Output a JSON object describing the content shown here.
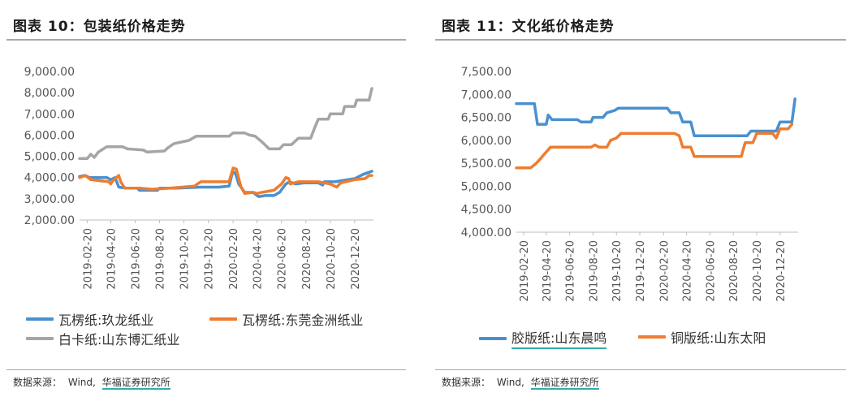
{
  "left": {
    "title": "图表 10：包装纸价格走势",
    "source": {
      "prefix": "数据来源：",
      "wind": "Wind,",
      "org": "华福证券研究所"
    },
    "chart_data": {
      "type": "line",
      "ylim": [
        2000,
        9000
      ],
      "yticks": [
        2000,
        3000,
        4000,
        5000,
        6000,
        7000,
        8000,
        9000
      ],
      "ytick_labels": [
        "2,000.00",
        "3,000.00",
        "4,000.00",
        "5,000.00",
        "6,000.00",
        "7,000.00",
        "8,000.00",
        "9,000.00"
      ],
      "xlim": [
        "2019-02-01",
        "2021-02-05"
      ],
      "xtick_labels": [
        "2019-02-20",
        "2019-04-20",
        "2019-06-20",
        "2019-08-20",
        "2019-10-20",
        "2019-12-20",
        "2020-02-20",
        "2020-04-20",
        "2020-06-20",
        "2020-08-20",
        "2020-10-20",
        "2020-12-20"
      ],
      "grid": false,
      "legend_position": "bottom",
      "series": [
        {
          "name": "瓦楞纸:玖龙纸业",
          "color": "#4a90d0",
          "points": [
            [
              "2019-02-01",
              4050
            ],
            [
              "2019-02-15",
              4100
            ],
            [
              "2019-02-25",
              4000
            ],
            [
              "2019-04-10",
              4000
            ],
            [
              "2019-04-20",
              3900
            ],
            [
              "2019-05-01",
              4000
            ],
            [
              "2019-05-10",
              3550
            ],
            [
              "2019-06-01",
              3500
            ],
            [
              "2019-06-25",
              3500
            ],
            [
              "2019-07-01",
              3400
            ],
            [
              "2019-08-15",
              3400
            ],
            [
              "2019-08-20",
              3500
            ],
            [
              "2019-10-01",
              3500
            ],
            [
              "2019-12-01",
              3550
            ],
            [
              "2020-01-15",
              3550
            ],
            [
              "2020-02-10",
              3600
            ],
            [
              "2020-02-18",
              4200
            ],
            [
              "2020-02-25",
              4250
            ],
            [
              "2020-03-05",
              3700
            ],
            [
              "2020-03-20",
              3300
            ],
            [
              "2020-04-10",
              3300
            ],
            [
              "2020-04-20",
              3150
            ],
            [
              "2020-04-25",
              3100
            ],
            [
              "2020-05-10",
              3150
            ],
            [
              "2020-06-01",
              3150
            ],
            [
              "2020-06-15",
              3300
            ],
            [
              "2020-07-01",
              3700
            ],
            [
              "2020-07-10",
              3800
            ],
            [
              "2020-07-25",
              3700
            ],
            [
              "2020-08-15",
              3750
            ],
            [
              "2020-09-20",
              3750
            ],
            [
              "2020-10-01",
              3650
            ],
            [
              "2020-10-05",
              3800
            ],
            [
              "2020-11-01",
              3800
            ],
            [
              "2020-12-20",
              3950
            ],
            [
              "2021-01-10",
              4150
            ],
            [
              "2021-01-25",
              4250
            ],
            [
              "2021-02-01",
              4300
            ]
          ]
        },
        {
          "name": "瓦楞纸:东莞金洲纸业",
          "color": "#ed7d31",
          "points": [
            [
              "2019-02-01",
              4000
            ],
            [
              "2019-02-15",
              4100
            ],
            [
              "2019-03-01",
              3900
            ],
            [
              "2019-04-15",
              3800
            ],
            [
              "2019-04-20",
              3700
            ],
            [
              "2019-04-25",
              3850
            ],
            [
              "2019-05-10",
              4100
            ],
            [
              "2019-05-15",
              3800
            ],
            [
              "2019-05-25",
              3500
            ],
            [
              "2019-07-01",
              3500
            ],
            [
              "2019-08-01",
              3450
            ],
            [
              "2019-09-15",
              3500
            ],
            [
              "2019-10-15",
              3550
            ],
            [
              "2019-11-15",
              3600
            ],
            [
              "2019-12-01",
              3800
            ],
            [
              "2020-01-25",
              3800
            ],
            [
              "2020-02-10",
              3800
            ],
            [
              "2020-02-20",
              4450
            ],
            [
              "2020-02-28",
              4400
            ],
            [
              "2020-03-10",
              3600
            ],
            [
              "2020-03-20",
              3250
            ],
            [
              "2020-04-10",
              3300
            ],
            [
              "2020-04-20",
              3250
            ],
            [
              "2020-05-01",
              3300
            ],
            [
              "2020-06-01",
              3400
            ],
            [
              "2020-06-20",
              3700
            ],
            [
              "2020-07-01",
              4000
            ],
            [
              "2020-07-08",
              3950
            ],
            [
              "2020-07-12",
              3700
            ],
            [
              "2020-08-01",
              3800
            ],
            [
              "2020-09-20",
              3800
            ],
            [
              "2020-10-20",
              3700
            ],
            [
              "2020-11-05",
              3550
            ],
            [
              "2020-11-15",
              3750
            ],
            [
              "2020-12-20",
              3900
            ],
            [
              "2021-01-15",
              3950
            ],
            [
              "2021-01-25",
              4100
            ],
            [
              "2021-02-01",
              4100
            ]
          ]
        },
        {
          "name": "白卡纸:山东博汇纸业",
          "color": "#a5a5a5",
          "points": [
            [
              "2019-02-01",
              4900
            ],
            [
              "2019-02-20",
              4900
            ],
            [
              "2019-03-01",
              5100
            ],
            [
              "2019-03-10",
              4950
            ],
            [
              "2019-03-20",
              5200
            ],
            [
              "2019-04-10",
              5450
            ],
            [
              "2019-05-20",
              5450
            ],
            [
              "2019-06-01",
              5350
            ],
            [
              "2019-07-10",
              5300
            ],
            [
              "2019-07-20",
              5200
            ],
            [
              "2019-09-01",
              5250
            ],
            [
              "2019-09-10",
              5400
            ],
            [
              "2019-09-25",
              5600
            ],
            [
              "2019-11-01",
              5750
            ],
            [
              "2019-11-20",
              5950
            ],
            [
              "2020-01-01",
              5950
            ],
            [
              "2020-02-10",
              5950
            ],
            [
              "2020-02-20",
              6100
            ],
            [
              "2020-03-20",
              6100
            ],
            [
              "2020-04-01",
              6000
            ],
            [
              "2020-04-15",
              5950
            ],
            [
              "2020-05-01",
              5700
            ],
            [
              "2020-05-20",
              5350
            ],
            [
              "2020-06-15",
              5350
            ],
            [
              "2020-06-25",
              5550
            ],
            [
              "2020-07-15",
              5550
            ],
            [
              "2020-08-01",
              5850
            ],
            [
              "2020-09-01",
              5850
            ],
            [
              "2020-09-10",
              6300
            ],
            [
              "2020-09-20",
              6750
            ],
            [
              "2020-10-15",
              6750
            ],
            [
              "2020-10-20",
              7000
            ],
            [
              "2020-11-20",
              7000
            ],
            [
              "2020-11-25",
              7350
            ],
            [
              "2020-12-20",
              7350
            ],
            [
              "2020-12-25",
              7650
            ],
            [
              "2021-01-25",
              7650
            ],
            [
              "2021-02-01",
              8200
            ]
          ]
        }
      ]
    }
  },
  "right": {
    "title": "图表 11：文化纸价格走势",
    "source": {
      "prefix": "数据来源：",
      "wind": "Wind,",
      "org": "华福证券研究所"
    },
    "chart_data": {
      "type": "line",
      "ylim": [
        4000,
        7500
      ],
      "yticks": [
        4000,
        4500,
        5000,
        5500,
        6000,
        6500,
        7000,
        7500
      ],
      "ytick_labels": [
        "4,000.00",
        "4,500.00",
        "5,000.00",
        "5,500.00",
        "6,000.00",
        "6,500.00",
        "7,000.00",
        "7,500.00"
      ],
      "xlim": [
        "2019-02-01",
        "2021-02-05"
      ],
      "xtick_labels": [
        "2019-02-20",
        "2019-04-20",
        "2019-06-20",
        "2019-08-20",
        "2019-10-20",
        "2019-12-20",
        "2020-02-20",
        "2020-04-20",
        "2020-06-20",
        "2020-08-20",
        "2020-10-20",
        "2020-12-20"
      ],
      "grid": false,
      "legend_position": "bottom",
      "series": [
        {
          "name": "胶版纸:山东晨鸣",
          "color": "#4a90d0",
          "points": [
            [
              "2019-02-01",
              6800
            ],
            [
              "2019-03-20",
              6800
            ],
            [
              "2019-03-28",
              6350
            ],
            [
              "2019-04-20",
              6350
            ],
            [
              "2019-04-25",
              6550
            ],
            [
              "2019-05-05",
              6450
            ],
            [
              "2019-07-10",
              6450
            ],
            [
              "2019-07-20",
              6400
            ],
            [
              "2019-08-15",
              6400
            ],
            [
              "2019-08-20",
              6500
            ],
            [
              "2019-09-15",
              6500
            ],
            [
              "2019-09-25",
              6600
            ],
            [
              "2019-10-15",
              6650
            ],
            [
              "2019-10-25",
              6700
            ],
            [
              "2020-03-01",
              6700
            ],
            [
              "2020-03-10",
              6600
            ],
            [
              "2020-04-01",
              6600
            ],
            [
              "2020-04-10",
              6400
            ],
            [
              "2020-05-01",
              6400
            ],
            [
              "2020-05-10",
              6100
            ],
            [
              "2020-09-25",
              6100
            ],
            [
              "2020-10-05",
              6200
            ],
            [
              "2020-12-10",
              6200
            ],
            [
              "2020-12-20",
              6400
            ],
            [
              "2021-01-20",
              6400
            ],
            [
              "2021-01-28",
              6900
            ]
          ]
        },
        {
          "name": "铜版纸:山东太阳",
          "color": "#ed7d31",
          "points": [
            [
              "2019-02-01",
              5400
            ],
            [
              "2019-03-10",
              5400
            ],
            [
              "2019-03-25",
              5500
            ],
            [
              "2019-04-05",
              5600
            ],
            [
              "2019-04-15",
              5700
            ],
            [
              "2019-05-01",
              5850
            ],
            [
              "2019-07-15",
              5850
            ],
            [
              "2019-08-15",
              5850
            ],
            [
              "2019-08-25",
              5900
            ],
            [
              "2019-09-05",
              5850
            ],
            [
              "2019-09-25",
              5850
            ],
            [
              "2019-10-05",
              6000
            ],
            [
              "2019-10-20",
              6050
            ],
            [
              "2019-11-01",
              6150
            ],
            [
              "2020-03-20",
              6150
            ],
            [
              "2020-04-01",
              6100
            ],
            [
              "2020-04-10",
              5850
            ],
            [
              "2020-05-01",
              5850
            ],
            [
              "2020-05-10",
              5650
            ],
            [
              "2020-09-10",
              5650
            ],
            [
              "2020-09-20",
              5950
            ],
            [
              "2020-10-10",
              5950
            ],
            [
              "2020-10-20",
              6150
            ],
            [
              "2020-12-01",
              6150
            ],
            [
              "2020-12-10",
              6050
            ],
            [
              "2020-12-20",
              6250
            ],
            [
              "2021-01-10",
              6250
            ],
            [
              "2021-01-20",
              6350
            ]
          ]
        }
      ]
    }
  }
}
